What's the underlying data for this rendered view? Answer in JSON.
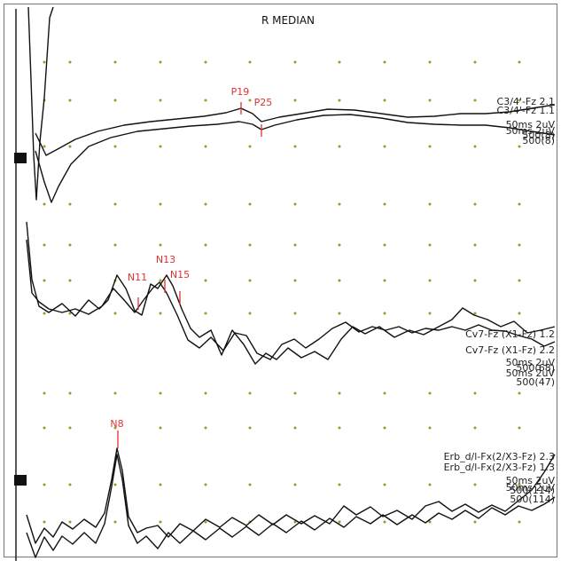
{
  "title": "R MEDIAN",
  "colors": {
    "trace": "#111111",
    "marker": "#e53030",
    "grid_dot": "#9a9a22",
    "frame": "#777777"
  },
  "chart_data": [
    {
      "type": "line",
      "name": "cortical",
      "channels": [
        {
          "label": "C3/4'-Fz 2.1",
          "settings": "50ms 2uV",
          "avg": "500(8)"
        },
        {
          "label": "C3/4'-Fz 1.1",
          "settings": "50ms 2uV",
          "avg": "500(8)"
        }
      ],
      "markers": [
        {
          "label": "P19",
          "x": 19
        },
        {
          "label": "P25",
          "x": 25
        }
      ]
    },
    {
      "type": "line",
      "name": "cervical",
      "channels": [
        {
          "label": "Cv7-Fz (X1-Fz) 1.2",
          "settings": "50ms 2uV",
          "avg": "500(68)"
        },
        {
          "label": "Cv7-Fz (X1-Fz) 2.2",
          "settings": "50ms 2uV",
          "avg": "500(47)"
        }
      ],
      "markers": [
        {
          "label": "N11",
          "x": 11
        },
        {
          "label": "N13",
          "x": 13
        },
        {
          "label": "N15",
          "x": 15
        }
      ]
    },
    {
      "type": "line",
      "name": "erb",
      "channels": [
        {
          "label": "Erb_d/l-Fx(2/X3-Fz) 2.3",
          "settings": "50ms 2uV",
          "avg": "500(114)"
        },
        {
          "label": "Erb_d/l-Fx(2/X3-Fz) 1.3",
          "settings": "50ms 2uV",
          "avg": "500(114)"
        }
      ],
      "markers": [
        {
          "label": "N8",
          "x": 8
        }
      ]
    }
  ]
}
